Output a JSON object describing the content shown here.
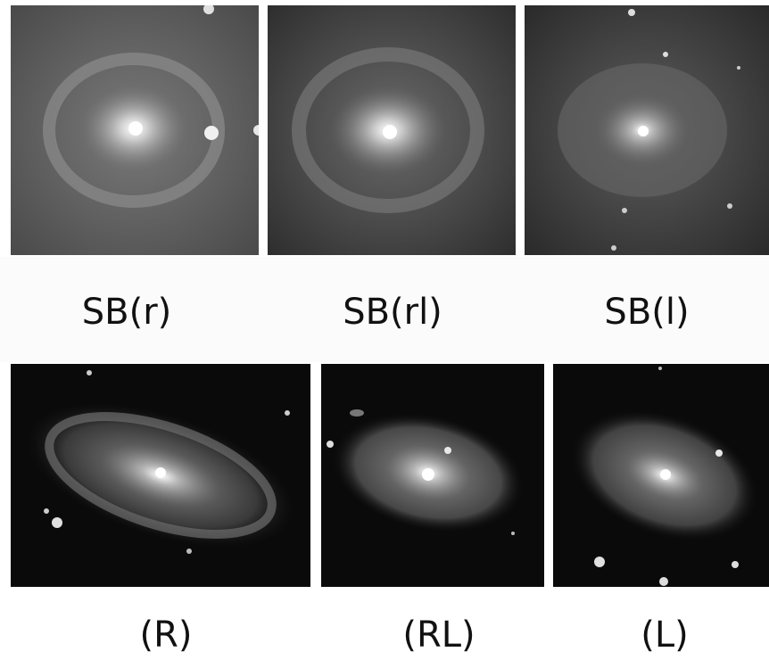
{
  "top_row": [
    {
      "label": "SB(r)"
    },
    {
      "label": "SB(rl)"
    },
    {
      "label": "SB(l)"
    }
  ],
  "bottom_row": [
    {
      "label": "(R)"
    },
    {
      "label": "(RL)"
    },
    {
      "label": "(L)"
    }
  ]
}
